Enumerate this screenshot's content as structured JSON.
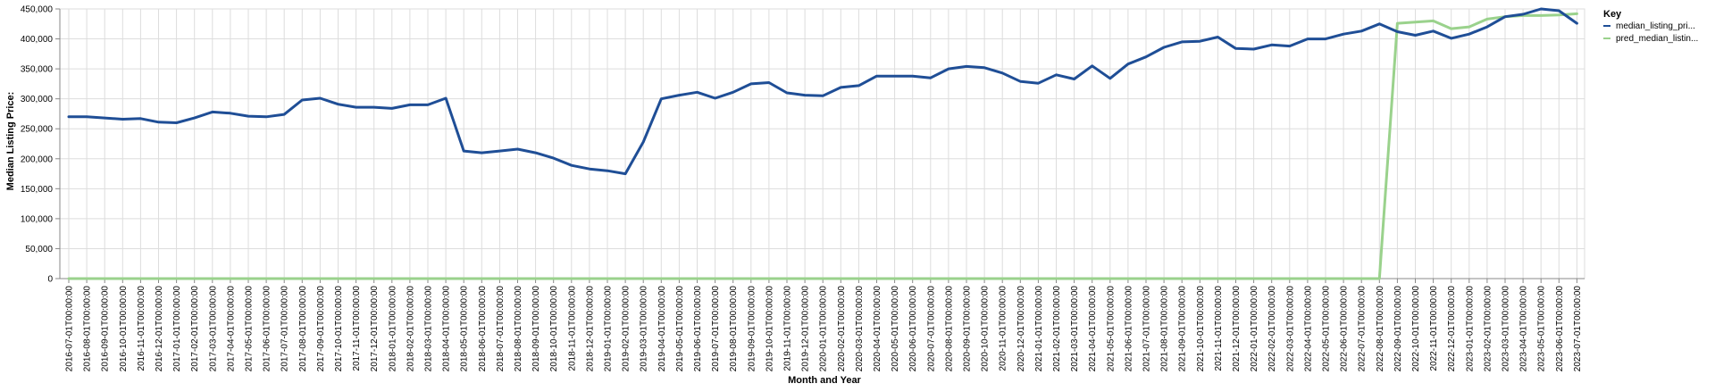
{
  "chart_data": {
    "type": "line",
    "xlabel": "Month and Year",
    "ylabel": "Median Listing Price:",
    "ylim": [
      0,
      450000
    ],
    "yticks": [
      "0",
      "50,000",
      "100,000",
      "150,000",
      "200,000",
      "250,000",
      "300,000",
      "350,000",
      "400,000",
      "450,000"
    ],
    "ytick_values": [
      0,
      50000,
      100000,
      150000,
      200000,
      250000,
      300000,
      350000,
      400000,
      450000
    ],
    "grid": true,
    "legend": {
      "title": "Key",
      "position": "right"
    },
    "x": [
      "2016-07-01T00:00:00",
      "2016-08-01T00:00:00",
      "2016-09-01T00:00:00",
      "2016-10-01T00:00:00",
      "2016-11-01T00:00:00",
      "2016-12-01T00:00:00",
      "2017-01-01T00:00:00",
      "2017-02-01T00:00:00",
      "2017-03-01T00:00:00",
      "2017-04-01T00:00:00",
      "2017-05-01T00:00:00",
      "2017-06-01T00:00:00",
      "2017-07-01T00:00:00",
      "2017-08-01T00:00:00",
      "2017-09-01T00:00:00",
      "2017-10-01T00:00:00",
      "2017-11-01T00:00:00",
      "2017-12-01T00:00:00",
      "2018-01-01T00:00:00",
      "2018-02-01T00:00:00",
      "2018-03-01T00:00:00",
      "2018-04-01T00:00:00",
      "2018-05-01T00:00:00",
      "2018-06-01T00:00:00",
      "2018-07-01T00:00:00",
      "2018-08-01T00:00:00",
      "2018-09-01T00:00:00",
      "2018-10-01T00:00:00",
      "2018-11-01T00:00:00",
      "2018-12-01T00:00:00",
      "2019-01-01T00:00:00",
      "2019-02-01T00:00:00",
      "2019-03-01T00:00:00",
      "2019-04-01T00:00:00",
      "2019-05-01T00:00:00",
      "2019-06-01T00:00:00",
      "2019-07-01T00:00:00",
      "2019-08-01T00:00:00",
      "2019-09-01T00:00:00",
      "2019-10-01T00:00:00",
      "2019-11-01T00:00:00",
      "2019-12-01T00:00:00",
      "2020-01-01T00:00:00",
      "2020-02-01T00:00:00",
      "2020-03-01T00:00:00",
      "2020-04-01T00:00:00",
      "2020-05-01T00:00:00",
      "2020-06-01T00:00:00",
      "2020-07-01T00:00:00",
      "2020-08-01T00:00:00",
      "2020-09-01T00:00:00",
      "2020-10-01T00:00:00",
      "2020-11-01T00:00:00",
      "2020-12-01T00:00:00",
      "2021-01-01T00:00:00",
      "2021-02-01T00:00:00",
      "2021-03-01T00:00:00",
      "2021-04-01T00:00:00",
      "2021-05-01T00:00:00",
      "2021-06-01T00:00:00",
      "2021-07-01T00:00:00",
      "2021-08-01T00:00:00",
      "2021-09-01T00:00:00",
      "2021-10-01T00:00:00",
      "2021-11-01T00:00:00",
      "2021-12-01T00:00:00",
      "2022-01-01T00:00:00",
      "2022-02-01T00:00:00",
      "2022-03-01T00:00:00",
      "2022-04-01T00:00:00",
      "2022-05-01T00:00:00",
      "2022-06-01T00:00:00",
      "2022-07-01T00:00:00",
      "2022-08-01T00:00:00",
      "2022-09-01T00:00:00",
      "2022-10-01T00:00:00",
      "2022-11-01T00:00:00",
      "2022-12-01T00:00:00",
      "2023-01-01T00:00:00",
      "2023-02-01T00:00:00",
      "2023-03-01T00:00:00",
      "2023-04-01T00:00:00",
      "2023-05-01T00:00:00",
      "2023-06-01T00:00:00",
      "2023-07-01T00:00:00"
    ],
    "series": [
      {
        "name": "median_listing_pri...",
        "color": "#1f4e96",
        "values": [
          270000,
          270000,
          268000,
          266000,
          267000,
          261000,
          260000,
          268000,
          278000,
          276000,
          271000,
          270000,
          274000,
          298000,
          301000,
          291000,
          286000,
          286000,
          284000,
          290000,
          290000,
          301000,
          213000,
          210000,
          213000,
          216000,
          210000,
          201000,
          189000,
          183000,
          180000,
          175000,
          228000,
          300000,
          306000,
          311000,
          301000,
          311000,
          325000,
          327000,
          310000,
          306000,
          305000,
          319000,
          322000,
          338000,
          338000,
          338000,
          335000,
          350000,
          354000,
          352000,
          343000,
          329000,
          326000,
          340000,
          333000,
          355000,
          334000,
          358000,
          370000,
          386000,
          395000,
          396000,
          403000,
          384000,
          383000,
          390000,
          388000,
          400000,
          400000,
          408000,
          413000,
          425000,
          412000,
          406000,
          413000,
          401000,
          408000,
          420000,
          437000,
          441000,
          450000,
          447000,
          426000
        ]
      },
      {
        "name": "pred_median_listin...",
        "color": "#9ad28c",
        "values": [
          0,
          0,
          0,
          0,
          0,
          0,
          0,
          0,
          0,
          0,
          0,
          0,
          0,
          0,
          0,
          0,
          0,
          0,
          0,
          0,
          0,
          0,
          0,
          0,
          0,
          0,
          0,
          0,
          0,
          0,
          0,
          0,
          0,
          0,
          0,
          0,
          0,
          0,
          0,
          0,
          0,
          0,
          0,
          0,
          0,
          0,
          0,
          0,
          0,
          0,
          0,
          0,
          0,
          0,
          0,
          0,
          0,
          0,
          0,
          0,
          0,
          0,
          0,
          0,
          0,
          0,
          0,
          0,
          0,
          0,
          0,
          0,
          0,
          0,
          426000,
          428000,
          430000,
          417000,
          420000,
          433000,
          437000,
          439000,
          439000,
          440000,
          442000
        ]
      }
    ]
  }
}
